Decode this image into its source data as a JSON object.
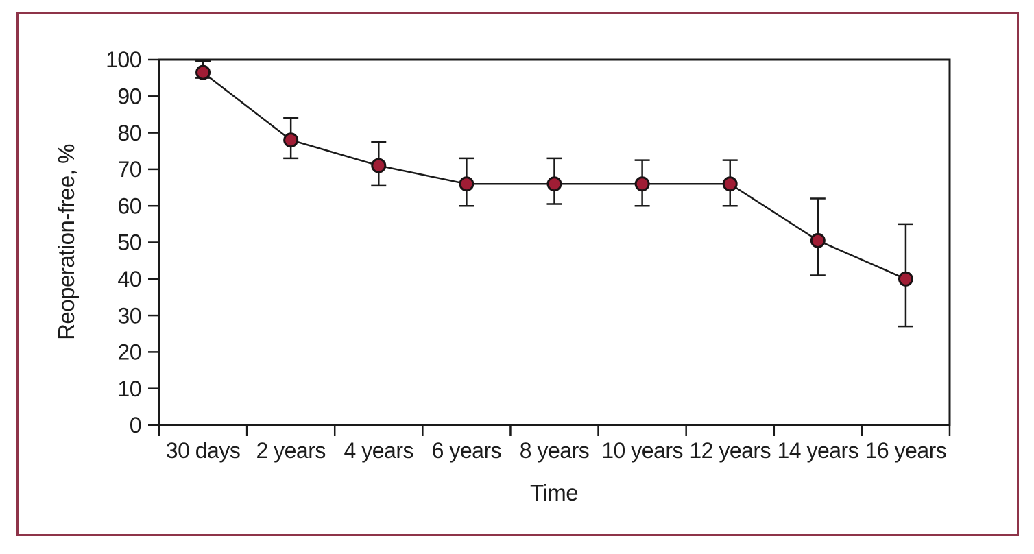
{
  "figure": {
    "border_color": "#8e3449",
    "background_color": "#ffffff",
    "text_color": "#1c1c1c"
  },
  "chart_data": {
    "type": "line",
    "title": "",
    "xlabel": "Time",
    "ylabel": "Reoperation-free, %",
    "ylim": [
      0,
      100
    ],
    "yticks": [
      0,
      10,
      20,
      30,
      40,
      50,
      60,
      70,
      80,
      90,
      100
    ],
    "grid": false,
    "frame": true,
    "legend": "none",
    "categories": [
      "30 days",
      "2 years",
      "4 years",
      "6 years",
      "8 years",
      "10 years",
      "12 years",
      "14 years",
      "16 years"
    ],
    "series": [
      {
        "name": "Reoperation-free",
        "marker": "circle",
        "marker_color": "#a01d35",
        "marker_outline_color": "#1a1214",
        "line_color": "#1a1a1a",
        "error_bar_color": "#1a1a1a",
        "values": [
          96.5,
          78,
          71,
          66,
          66,
          66,
          66,
          50.5,
          40
        ],
        "error_upper": [
          99.5,
          84,
          77.5,
          73,
          73,
          72.5,
          72.5,
          62,
          55
        ],
        "error_lower": [
          95,
          73,
          65.5,
          60,
          60.5,
          60,
          60,
          41,
          27
        ]
      }
    ]
  }
}
